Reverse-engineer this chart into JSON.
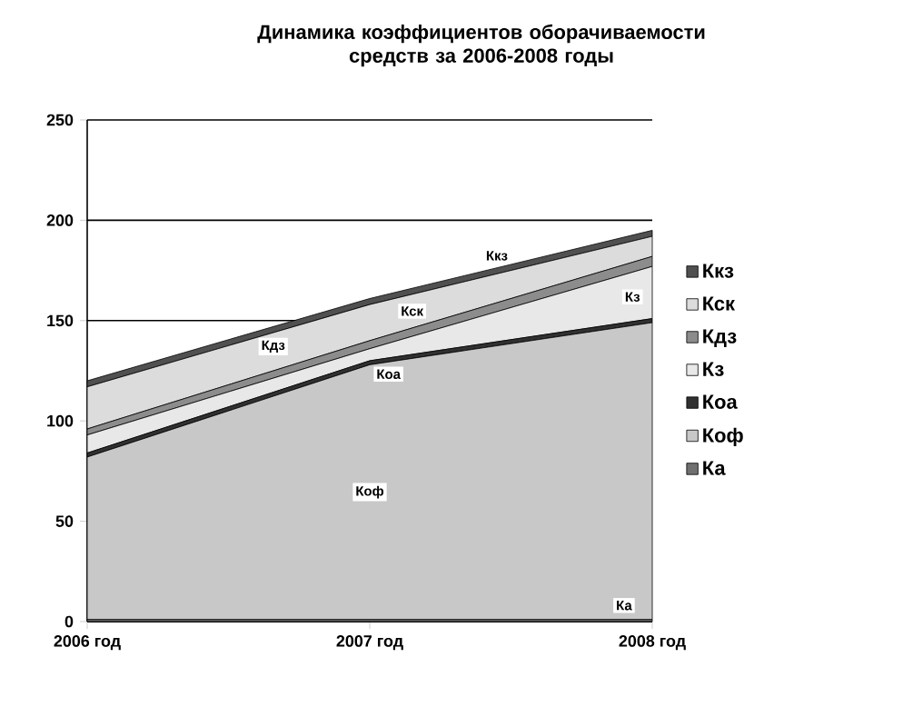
{
  "chart_data": {
    "type": "area",
    "stacked": true,
    "title": "Динамика коэффициентов оборачиваемости средств за 2006-2008 годы",
    "categories": [
      "2006 год",
      "2007 год",
      "2008 год"
    ],
    "series": [
      {
        "name": "Ка",
        "color": "#707070",
        "values": [
          1,
          1,
          1
        ]
      },
      {
        "name": "Коф",
        "color": "#c8c8c8",
        "values": [
          81,
          127,
          148
        ]
      },
      {
        "name": "Коа",
        "color": "#303030",
        "values": [
          2,
          2,
          2
        ]
      },
      {
        "name": "Кз",
        "color": "#e8e8e8",
        "values": [
          9,
          6,
          26
        ]
      },
      {
        "name": "Кдз",
        "color": "#8c8c8c",
        "values": [
          3,
          4,
          5
        ]
      },
      {
        "name": "Кск",
        "color": "#dcdcdc",
        "values": [
          21,
          18,
          10
        ]
      },
      {
        "name": "Ккз",
        "color": "#505050",
        "values": [
          3,
          3,
          3
        ]
      }
    ],
    "ylim": [
      0,
      250
    ],
    "yticks": [
      0,
      50,
      100,
      150,
      200,
      250
    ],
    "grid": "y",
    "legend": "right"
  }
}
